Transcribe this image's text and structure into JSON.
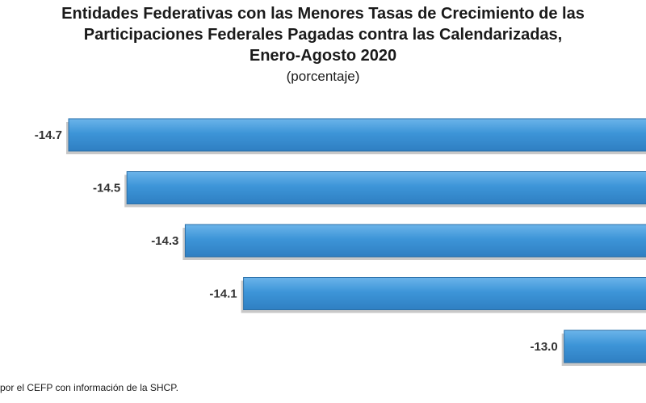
{
  "title_lines": [
    "Entidades Federativas con las Menores Tasas de Crecimiento de las",
    "Participaciones Federales Pagadas contra las Calendarizadas,",
    "Enero-Agosto 2020"
  ],
  "subtitle": "(porcentaje)",
  "source": "por el CEFP con información de la SHCP.",
  "colors": {
    "bar": "#3d95d8",
    "bar_edge": "#2a6fa8",
    "shadow": "#9a9a9a"
  },
  "chart_data": {
    "type": "bar",
    "orientation": "horizontal",
    "values": [
      -14.7,
      -14.5,
      -14.3,
      -14.1,
      -13.0
    ],
    "value_labels": [
      "-14.7",
      "-14.5",
      "-14.3",
      "-14.1",
      "-13.0"
    ],
    "title": "Entidades Federativas con las Menores Tasas de Crecimiento de las Participaciones Federales Pagadas contra las Calendarizadas, Enero-Agosto 2020",
    "subtitle": "(porcentaje)",
    "grid": false,
    "legend": "none"
  }
}
